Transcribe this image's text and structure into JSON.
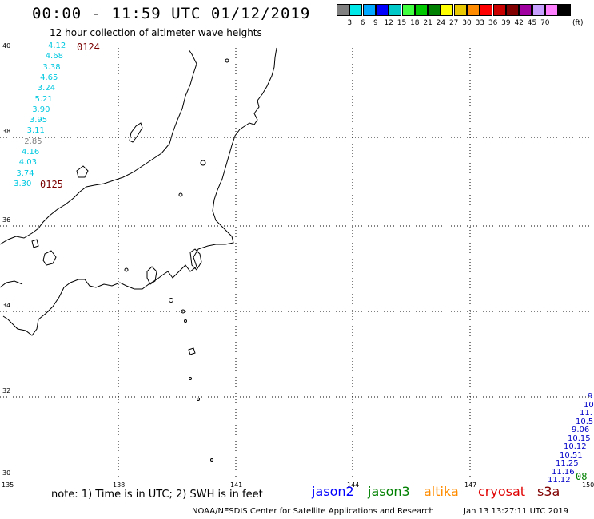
{
  "header": {
    "title": "00:00 - 11:59 UTC 01/12/2019",
    "subtitle": "12 hour collection of altimeter wave heights"
  },
  "color_scale": {
    "unit": "(ft)",
    "swatches": [
      {
        "label": "",
        "color": "#808080"
      },
      {
        "label": "3",
        "color": "#00e8e8"
      },
      {
        "label": "6",
        "color": "#00a8ff"
      },
      {
        "label": "9",
        "color": "#0000ff"
      },
      {
        "label": "12",
        "color": "#00c8c8"
      },
      {
        "label": "15",
        "color": "#40ff40"
      },
      {
        "label": "18",
        "color": "#00c800"
      },
      {
        "label": "21",
        "color": "#008000"
      },
      {
        "label": "24",
        "color": "#ffff00"
      },
      {
        "label": "27",
        "color": "#e8c800"
      },
      {
        "label": "30",
        "color": "#ff8c00"
      },
      {
        "label": "33",
        "color": "#ff0000"
      },
      {
        "label": "36",
        "color": "#c80000"
      },
      {
        "label": "39",
        "color": "#800000"
      },
      {
        "label": "42",
        "color": "#a000a0"
      },
      {
        "label": "45",
        "color": "#c8a0ff"
      },
      {
        "label": "70",
        "color": "#ff80ff"
      },
      {
        "label": "",
        "color": "#000000"
      }
    ]
  },
  "map": {
    "lat_labels": [
      "40",
      "38",
      "36",
      "34",
      "32",
      "30"
    ],
    "lon_labels": [
      "135",
      "138",
      "141",
      "144",
      "147",
      "150"
    ]
  },
  "passes": [
    {
      "label": "0124"
    },
    {
      "label": "0125"
    }
  ],
  "swh_track_west": [
    {
      "value": "4.12",
      "color": "#00c8e0"
    },
    {
      "value": "4.68",
      "color": "#00c8e0"
    },
    {
      "value": "3.38",
      "color": "#00c8e0"
    },
    {
      "value": "4.65",
      "color": "#00c8e0"
    },
    {
      "value": "3.24",
      "color": "#00c8e0"
    },
    {
      "value": "5.21",
      "color": "#00c8e0"
    },
    {
      "value": "3.90",
      "color": "#00c8e0"
    },
    {
      "value": "3.95",
      "color": "#00c8e0"
    },
    {
      "value": "3.11",
      "color": "#00c8e0"
    },
    {
      "value": "2.85",
      "color": "#808080"
    },
    {
      "value": "4.16",
      "color": "#00c8e0"
    },
    {
      "value": "4.03",
      "color": "#00c8e0"
    },
    {
      "value": "3.74",
      "color": "#00c8e0"
    },
    {
      "value": "3.30",
      "color": "#00c8e0"
    }
  ],
  "swh_track_east": [
    {
      "value": "9",
      "color": "#0000c8"
    },
    {
      "value": "10",
      "color": "#0000c8"
    },
    {
      "value": "11.",
      "color": "#0000c8"
    },
    {
      "value": "10.5",
      "color": "#0000c8"
    },
    {
      "value": "9.06",
      "color": "#0000c8"
    },
    {
      "value": "10.15",
      "color": "#0000c8"
    },
    {
      "value": "10.12",
      "color": "#0000c8"
    },
    {
      "value": "10.51",
      "color": "#0000c8"
    },
    {
      "value": "11.25",
      "color": "#0000c8"
    },
    {
      "value": "11.16",
      "color": "#0000c8"
    },
    {
      "value": "11.12",
      "color": "#0000c8"
    }
  ],
  "east_pass_label": {
    "label": "08",
    "color": "#008000"
  },
  "note": "note: 1) Time is in UTC; 2) SWH is in feet",
  "satellites": [
    {
      "name": "jason2",
      "color": "#0000ff"
    },
    {
      "name": "jason3",
      "color": "#008000"
    },
    {
      "name": "altika",
      "color": "#ff8c00"
    },
    {
      "name": "cryosat",
      "color": "#e00000"
    },
    {
      "name": "s3a",
      "color": "#800000"
    }
  ],
  "footer": {
    "credit": "NOAA/NESDIS Center for Satellite Applications and Research",
    "timestamp": "Jan 13 13:27:11 UTC 2019"
  }
}
